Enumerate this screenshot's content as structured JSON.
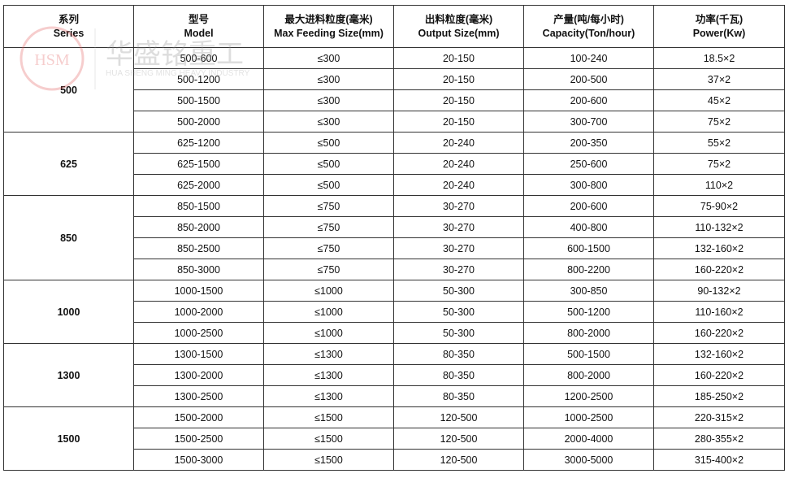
{
  "headers": [
    {
      "cn": "系列",
      "en": "Series"
    },
    {
      "cn": "型号",
      "en": "Model"
    },
    {
      "cn": "最大进料粒度(毫米)",
      "en": "Max Feeding Size(mm)"
    },
    {
      "cn": "出料粒度(毫米)",
      "en": "Output Size(mm)"
    },
    {
      "cn": "产量(吨/每小时)",
      "en": "Capacity(Ton/hour)"
    },
    {
      "cn": "功率(千瓦)",
      "en": "Power(Kw)"
    }
  ],
  "groups": [
    {
      "series": "500",
      "rows": [
        [
          "500-600",
          "≤300",
          "20-150",
          "100-240",
          "18.5×2"
        ],
        [
          "500-1200",
          "≤300",
          "20-150",
          "200-500",
          "37×2"
        ],
        [
          "500-1500",
          "≤300",
          "20-150",
          "200-600",
          "45×2"
        ],
        [
          "500-2000",
          "≤300",
          "20-150",
          "300-700",
          "75×2"
        ]
      ]
    },
    {
      "series": "625",
      "rows": [
        [
          "625-1200",
          "≤500",
          "20-240",
          "200-350",
          "55×2"
        ],
        [
          "625-1500",
          "≤500",
          "20-240",
          "250-600",
          "75×2"
        ],
        [
          "625-2000",
          "≤500",
          "20-240",
          "300-800",
          "110×2"
        ]
      ]
    },
    {
      "series": "850",
      "rows": [
        [
          "850-1500",
          "≤750",
          "30-270",
          "200-600",
          "75-90×2"
        ],
        [
          "850-2000",
          "≤750",
          "30-270",
          "400-800",
          "110-132×2"
        ],
        [
          "850-2500",
          "≤750",
          "30-270",
          "600-1500",
          "132-160×2"
        ],
        [
          "850-3000",
          "≤750",
          "30-270",
          "800-2200",
          "160-220×2"
        ]
      ]
    },
    {
      "series": "1000",
      "rows": [
        [
          "1000-1500",
          "≤1000",
          "50-300",
          "300-850",
          "90-132×2"
        ],
        [
          "1000-2000",
          "≤1000",
          "50-300",
          "500-1200",
          "110-160×2"
        ],
        [
          "1000-2500",
          "≤1000",
          "50-300",
          "800-2000",
          "160-220×2"
        ]
      ]
    },
    {
      "series": "1300",
      "rows": [
        [
          "1300-1500",
          "≤1300",
          "80-350",
          "500-1500",
          "132-160×2"
        ],
        [
          "1300-2000",
          "≤1300",
          "80-350",
          "800-2000",
          "160-220×2"
        ],
        [
          "1300-2500",
          "≤1300",
          "80-350",
          "1200-2500",
          "185-250×2"
        ]
      ]
    },
    {
      "series": "1500",
      "rows": [
        [
          "1500-2000",
          "≤1500",
          "120-500",
          "1000-2500",
          "220-315×2"
        ],
        [
          "1500-2500",
          "≤1500",
          "120-500",
          "2000-4000",
          "280-355×2"
        ],
        [
          "1500-3000",
          "≤1500",
          "120-500",
          "3000-5000",
          "315-400×2"
        ]
      ]
    }
  ],
  "watermark": {
    "logo": "HSM",
    "cn": "华盛铭重工",
    "en": "HUA SHENG MING HEAVY INDUSTRY",
    "accent": "#e05050"
  }
}
